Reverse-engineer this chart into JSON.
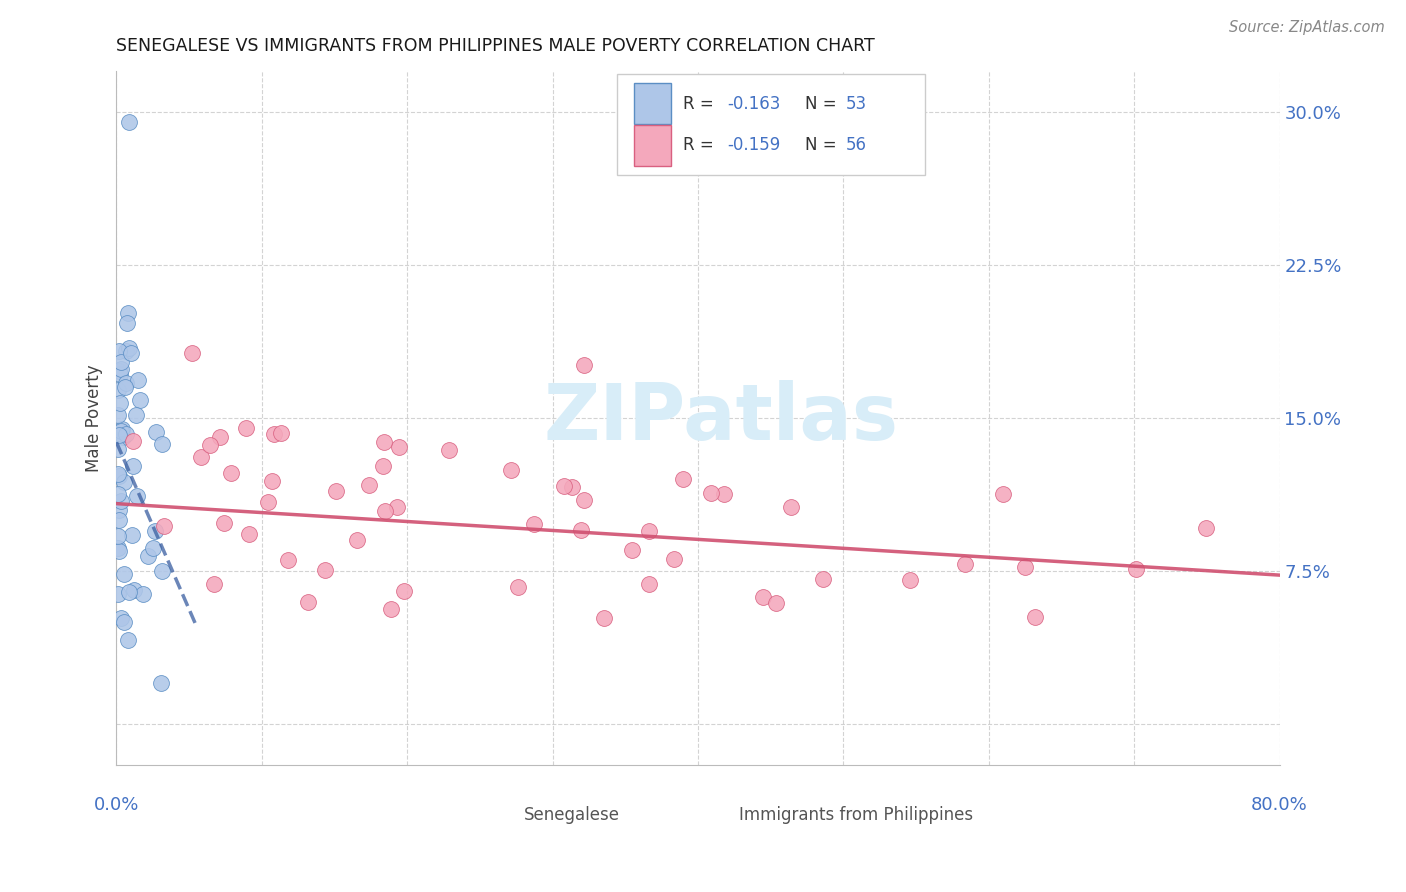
{
  "title": "SENEGALESE VS IMMIGRANTS FROM PHILIPPINES MALE POVERTY CORRELATION CHART",
  "source": "Source: ZipAtlas.com",
  "ylabel": "Male Poverty",
  "xmin": 0.0,
  "xmax": 0.8,
  "ymin": -0.02,
  "ymax": 0.32,
  "yticks": [
    0.0,
    0.075,
    0.15,
    0.225,
    0.3
  ],
  "ytick_labels": [
    "",
    "7.5%",
    "15.0%",
    "22.5%",
    "30.0%"
  ],
  "legend_r1": "-0.163",
  "legend_n1": "53",
  "legend_r2": "-0.159",
  "legend_n2": "56",
  "color_blue_fill": "#aec6e8",
  "color_blue_edge": "#5b8ec4",
  "color_pink_fill": "#f4a8bc",
  "color_pink_edge": "#d96080",
  "color_trendline_blue": "#3a5ea0",
  "color_trendline_pink": "#d05070",
  "color_axis_labels": "#4472c4",
  "color_grid": "#c8c8c8",
  "watermark_text": "ZIPatlas",
  "watermark_color": "#d8edf8",
  "legend_label1": "Senegalese",
  "legend_label2": "Immigrants from Philippines",
  "blue_trendline_x": [
    0.0,
    0.055
  ],
  "blue_trendline_y": [
    0.138,
    0.048
  ],
  "pink_trendline_x": [
    0.0,
    0.8
  ],
  "pink_trendline_y": [
    0.108,
    0.073
  ]
}
